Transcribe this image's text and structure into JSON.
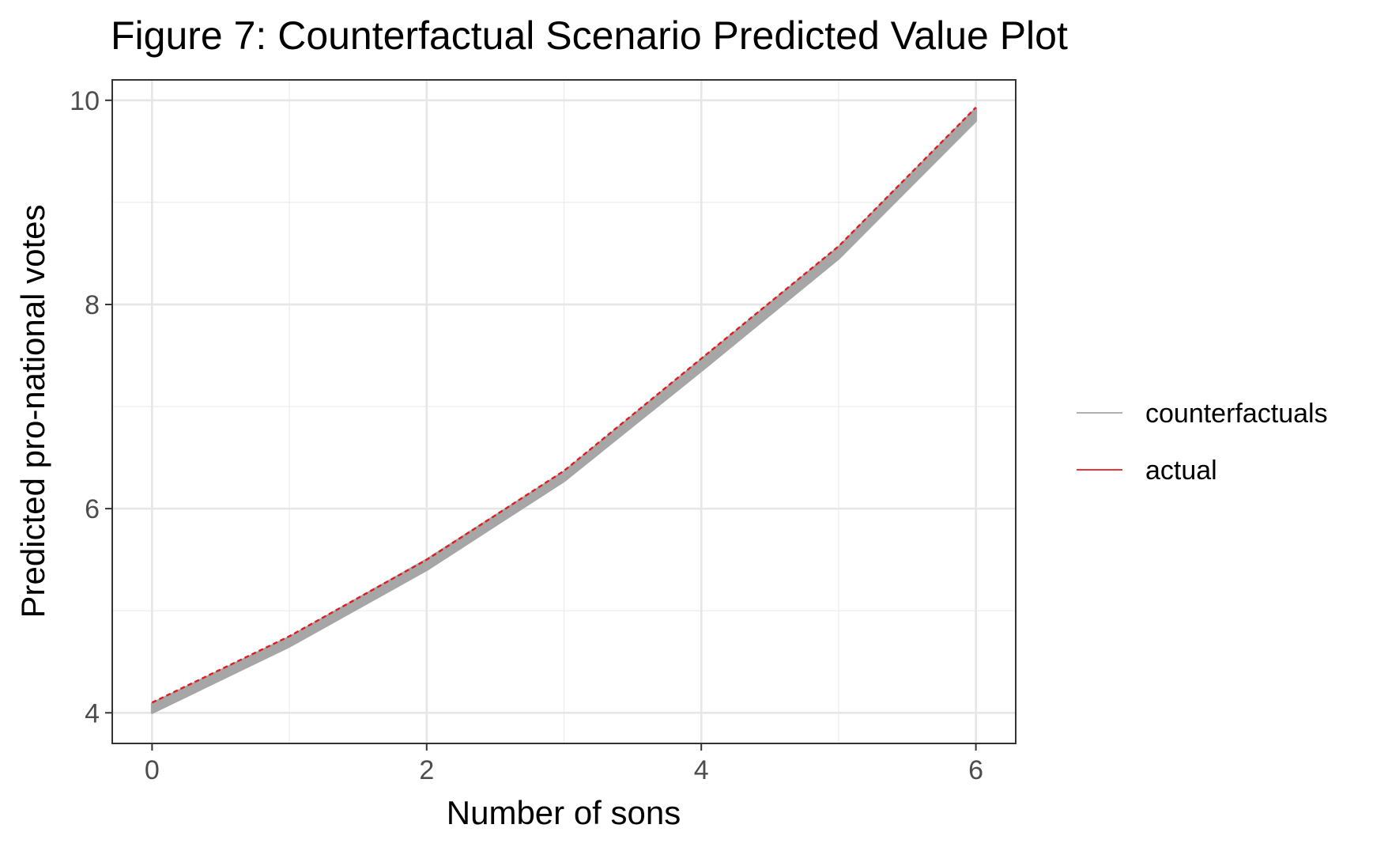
{
  "chart_data": {
    "type": "line",
    "title": "Figure 7: Counterfactual Scenario Predicted Value Plot",
    "xlabel": "Number of sons",
    "ylabel": "Predicted pro-national votes",
    "x": [
      0,
      1,
      2,
      3,
      4,
      5,
      6
    ],
    "xlim": [
      -0.29,
      6.29
    ],
    "ylim": [
      3.7,
      10.2
    ],
    "x_ticks": [
      0,
      2,
      4,
      6
    ],
    "y_ticks": [
      4,
      6,
      8,
      10
    ],
    "x_minor_ticks": [
      1,
      3,
      5
    ],
    "y_minor_ticks": [
      5,
      7,
      9
    ],
    "x_tick_labels": [
      "0",
      "2",
      "4",
      "6"
    ],
    "y_tick_labels": [
      "4",
      "6",
      "8",
      "10"
    ],
    "grid": true,
    "legend_position": "right",
    "series": [
      {
        "name": "counterfactuals",
        "color": "#a6a6a6",
        "style": "solid",
        "band": true,
        "lower": [
          4.0,
          4.65,
          5.4,
          6.27,
          7.35,
          8.45,
          9.8
        ],
        "upper": [
          4.09,
          4.74,
          5.5,
          6.36,
          7.46,
          8.56,
          9.92
        ],
        "values": [
          4.05,
          4.7,
          5.45,
          6.31,
          7.4,
          8.5,
          9.86
        ]
      },
      {
        "name": "actual",
        "color": "#e31a1c",
        "style": "dashed",
        "values": [
          4.1,
          4.75,
          5.5,
          6.37,
          7.47,
          8.57,
          9.93
        ]
      }
    ]
  }
}
